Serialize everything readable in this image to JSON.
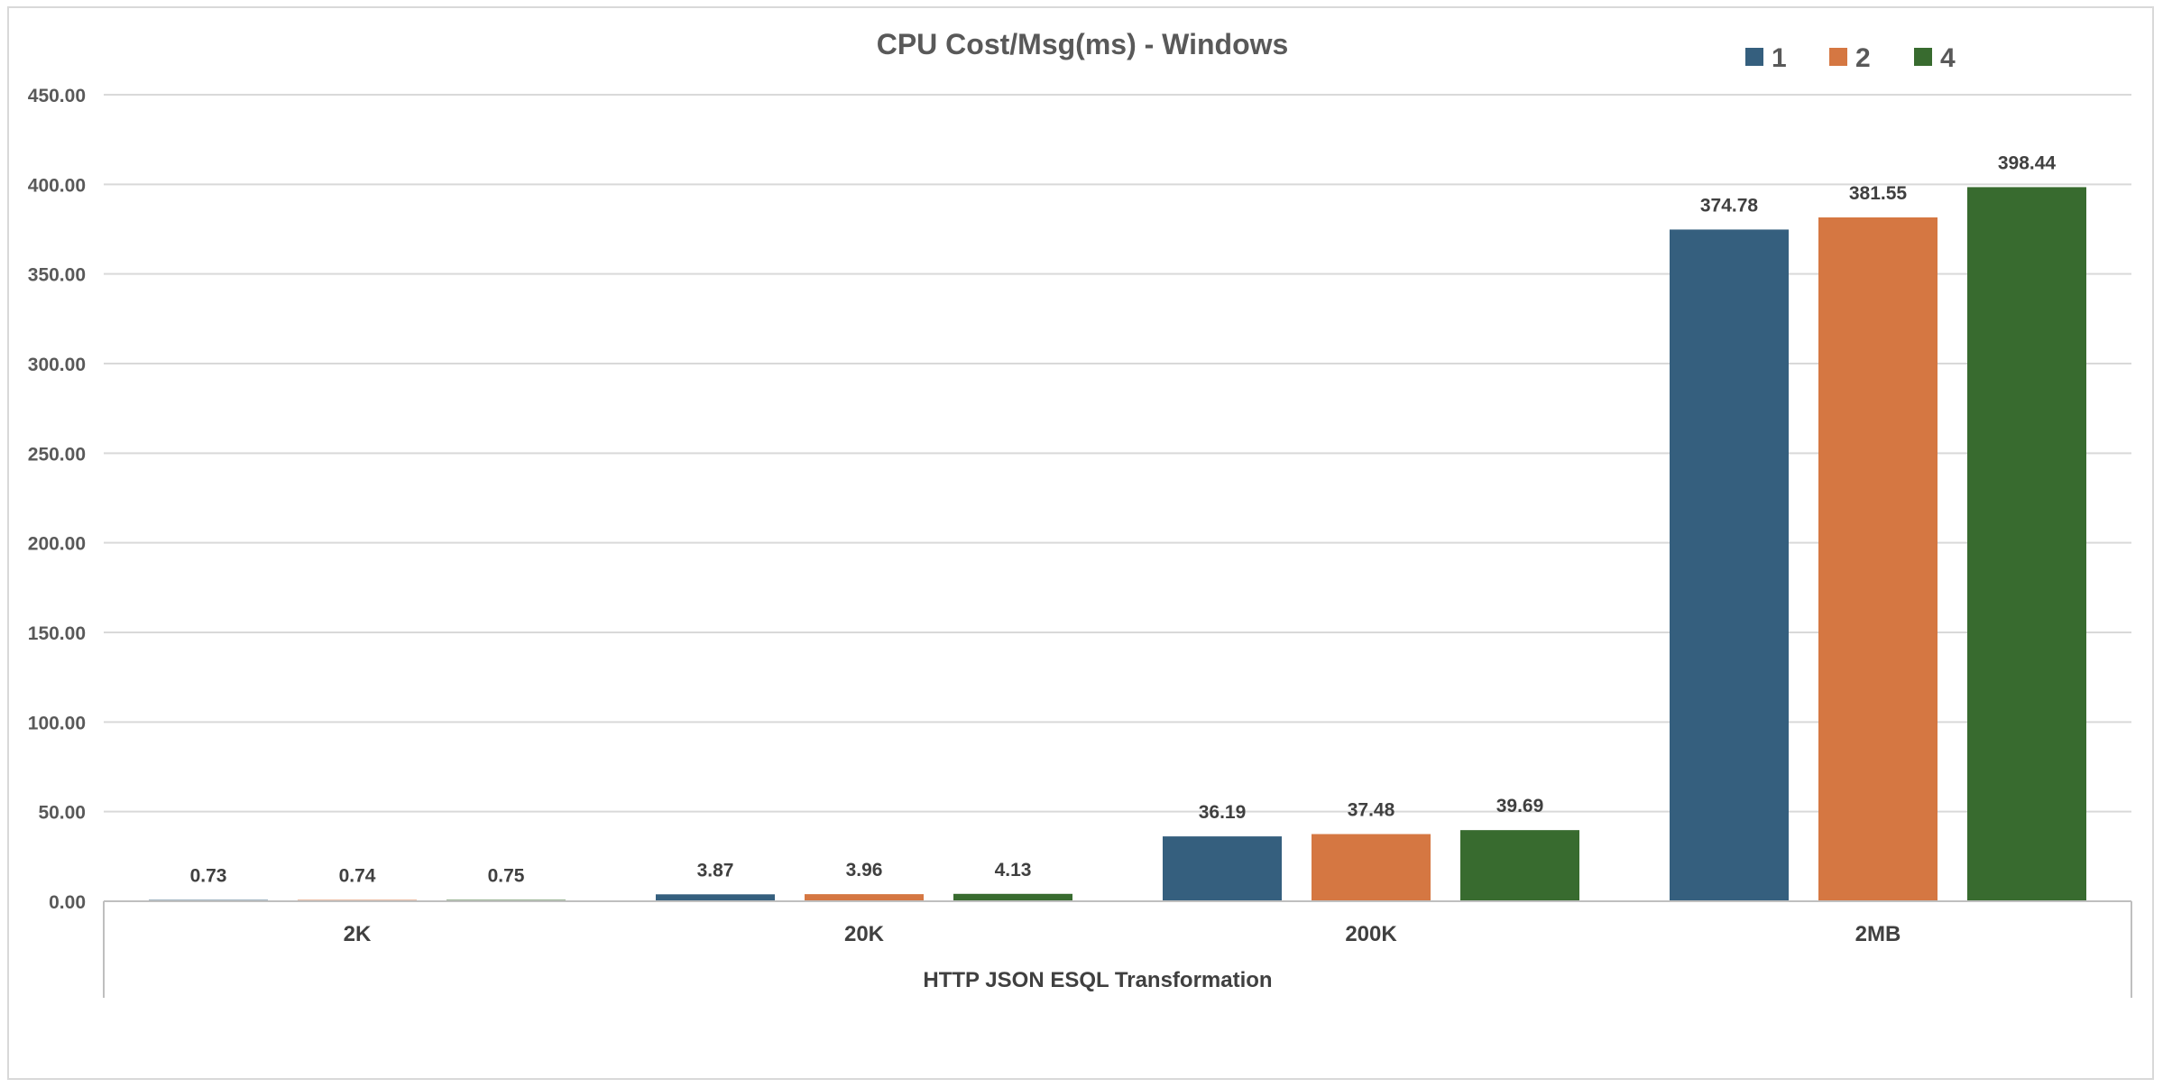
{
  "chart_data": {
    "type": "bar",
    "title": "CPU Cost/Msg(ms) - Windows",
    "xlabel": "HTTP JSON ESQL Transformation",
    "ylabel": "",
    "categories": [
      "2K",
      "20K",
      "200K",
      "2MB"
    ],
    "series": [
      {
        "name": "1",
        "color": "#355f7e",
        "values": [
          0.73,
          3.87,
          36.19,
          374.78
        ],
        "labels": [
          "0.73",
          "3.87",
          "36.19",
          "374.78"
        ]
      },
      {
        "name": "2",
        "color": "#d57742",
        "values": [
          0.74,
          3.96,
          37.48,
          381.55
        ],
        "labels": [
          "0.74",
          "3.96",
          "37.48",
          "381.55"
        ]
      },
      {
        "name": "4",
        "color": "#386b2f",
        "values": [
          0.75,
          4.13,
          39.69,
          398.44
        ],
        "labels": [
          "0.75",
          "4.13",
          "39.69",
          "398.44"
        ]
      }
    ],
    "ylim": [
      0,
      450
    ],
    "yticks": [
      "0.00",
      "50.00",
      "100.00",
      "150.00",
      "200.00",
      "250.00",
      "300.00",
      "350.00",
      "400.00",
      "450.00"
    ],
    "grid": true,
    "legend": "top-right"
  }
}
